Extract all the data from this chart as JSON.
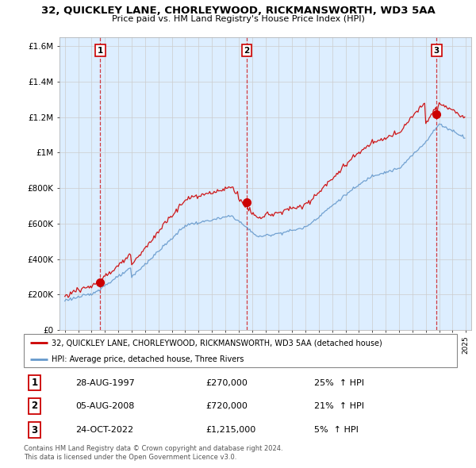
{
  "title": "32, QUICKLEY LANE, CHORLEYWOOD, RICKMANSWORTH, WD3 5AA",
  "subtitle": "Price paid vs. HM Land Registry's House Price Index (HPI)",
  "ylabel_ticks": [
    "£0",
    "£200K",
    "£400K",
    "£600K",
    "£800K",
    "£1M",
    "£1.2M",
    "£1.4M",
    "£1.6M"
  ],
  "ytick_values": [
    0,
    200000,
    400000,
    600000,
    800000,
    1000000,
    1200000,
    1400000,
    1600000
  ],
  "ylim": [
    0,
    1650000
  ],
  "xlim_start": 1994.6,
  "xlim_end": 2025.4,
  "sale_color": "#cc0000",
  "hpi_color": "#6699cc",
  "chart_bg": "#ddeeff",
  "sale_label": "32, QUICKLEY LANE, CHORLEYWOOD, RICKMANSWORTH, WD3 5AA (detached house)",
  "hpi_label": "HPI: Average price, detached house, Three Rivers",
  "transactions": [
    {
      "date": "28-AUG-1997",
      "date_num": 1997.65,
      "price": 270000,
      "above_hpi_pct": 25,
      "label": "1"
    },
    {
      "date": "05-AUG-2008",
      "date_num": 2008.59,
      "price": 720000,
      "above_hpi_pct": 21,
      "label": "2"
    },
    {
      "date": "24-OCT-2022",
      "date_num": 2022.81,
      "price": 1215000,
      "above_hpi_pct": 5,
      "label": "3"
    }
  ],
  "footer_line1": "Contains HM Land Registry data © Crown copyright and database right 2024.",
  "footer_line2": "This data is licensed under the Open Government Licence v3.0.",
  "background_color": "#ffffff",
  "grid_color": "#cccccc"
}
